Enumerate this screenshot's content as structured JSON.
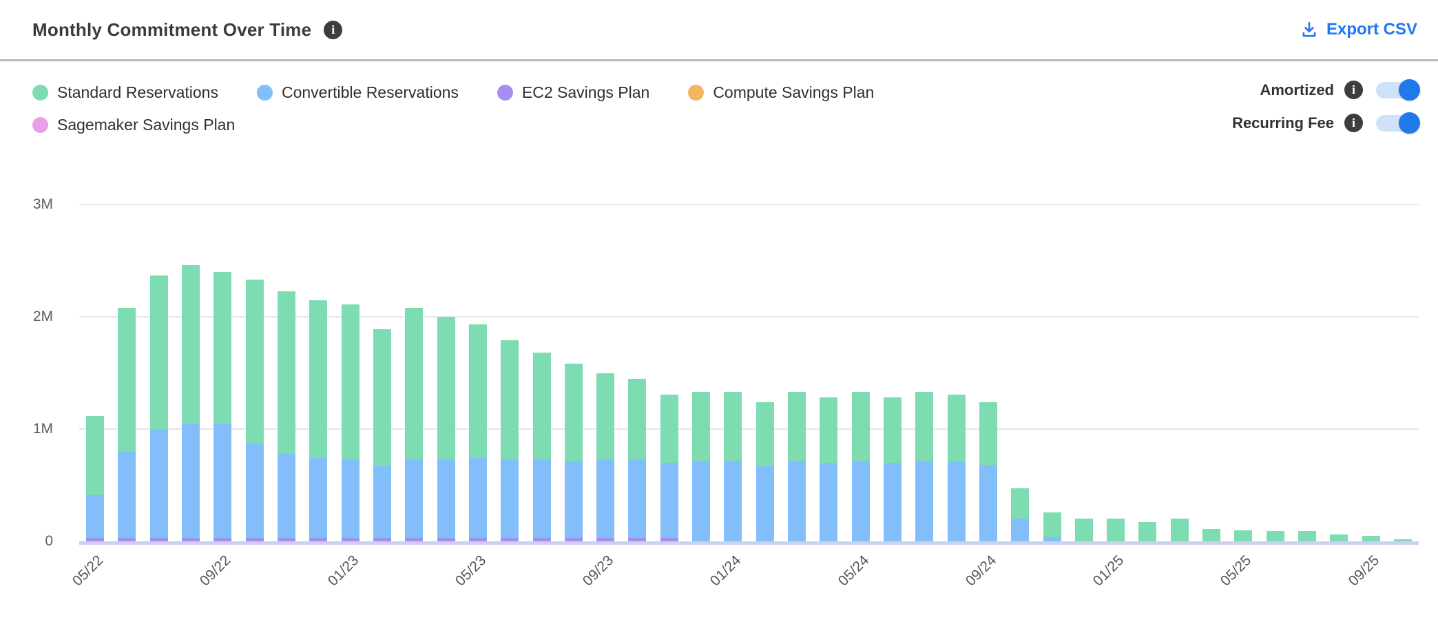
{
  "header": {
    "title": "Monthly Commitment Over Time",
    "export_label": "Export CSV"
  },
  "toggles": [
    {
      "label": "Amortized",
      "state": "on"
    },
    {
      "label": "Recurring Fee",
      "state": "on"
    }
  ],
  "colors": {
    "accent_blue": "#2176f3",
    "toggle_on": "#2079ea",
    "toggle_track": "#cfe2f8",
    "info_icon_bg": "#3d3d3d",
    "divider": "#b9b9b9",
    "gridline": "#e7e7e7",
    "axis_line": "#c9d3ee",
    "title_text": "#3b3b3b",
    "legend_text": "#2f2f2f",
    "axis_text": "#5d5d5d"
  },
  "chart_data": {
    "type": "bar",
    "stacked": true,
    "title": "Monthly Commitment Over Time",
    "unit": "M = millions",
    "ylim": [
      0,
      3
    ],
    "grid": "horizontal",
    "legend_position": "top-left",
    "y_ticks": {
      "values": [
        0,
        1,
        2,
        3
      ],
      "labels": [
        "0",
        "1M",
        "2M",
        "3M"
      ]
    },
    "x": [
      "05/22",
      "06/22",
      "07/22",
      "08/22",
      "09/22",
      "10/22",
      "11/22",
      "12/22",
      "01/23",
      "02/23",
      "03/23",
      "04/23",
      "05/23",
      "06/23",
      "07/23",
      "08/23",
      "09/23",
      "10/23",
      "11/23",
      "12/23",
      "01/24",
      "02/24",
      "03/24",
      "04/24",
      "05/24",
      "06/24",
      "07/24",
      "08/24",
      "09/24",
      "10/24",
      "11/24",
      "12/24",
      "01/25",
      "02/25",
      "03/25",
      "04/25",
      "05/25",
      "06/25",
      "07/25",
      "08/25",
      "09/25",
      "10/25"
    ],
    "x_tick_interval": 4,
    "x_tick_labels": [
      "05/22",
      "09/22",
      "01/23",
      "05/23",
      "09/23",
      "01/24",
      "05/24",
      "09/24",
      "01/25",
      "05/25",
      "09/25"
    ],
    "stack_bottom_to_top": [
      "Sagemaker Savings Plan",
      "Compute Savings Plan",
      "EC2 Savings Plan",
      "Convertible Reservations",
      "Standard Reservations"
    ],
    "series": [
      {
        "name": "Standard Reservations",
        "color": "#7edcb2",
        "values": [
          0.71,
          1.28,
          1.37,
          1.41,
          1.35,
          1.46,
          1.45,
          1.41,
          1.38,
          1.22,
          1.35,
          1.27,
          1.19,
          1.06,
          0.95,
          0.86,
          0.77,
          0.72,
          0.61,
          0.61,
          0.61,
          0.57,
          0.61,
          0.58,
          0.61,
          0.58,
          0.61,
          0.6,
          0.56,
          0.27,
          0.22,
          0.2,
          0.2,
          0.17,
          0.2,
          0.11,
          0.1,
          0.09,
          0.09,
          0.06,
          0.05,
          0.02
        ]
      },
      {
        "name": "Convertible Reservations",
        "color": "#82bef9",
        "values": [
          0.38,
          0.77,
          0.97,
          1.02,
          1.02,
          0.84,
          0.75,
          0.71,
          0.7,
          0.64,
          0.7,
          0.7,
          0.71,
          0.7,
          0.7,
          0.69,
          0.7,
          0.7,
          0.67,
          0.72,
          0.72,
          0.67,
          0.72,
          0.7,
          0.72,
          0.7,
          0.72,
          0.71,
          0.68,
          0.2,
          0.04,
          0,
          0,
          0,
          0,
          0,
          0,
          0,
          0,
          0,
          0,
          0
        ]
      },
      {
        "name": "EC2 Savings Plan",
        "color": "#a78df2",
        "values": [
          0.03,
          0.03,
          0.03,
          0.03,
          0.03,
          0.03,
          0.03,
          0.03,
          0.03,
          0.03,
          0.03,
          0.03,
          0.03,
          0.03,
          0.03,
          0.03,
          0.03,
          0.03,
          0.03,
          0,
          0,
          0,
          0,
          0,
          0,
          0,
          0,
          0,
          0,
          0,
          0,
          0,
          0,
          0,
          0,
          0,
          0,
          0,
          0,
          0,
          0,
          0
        ]
      },
      {
        "name": "Compute Savings Plan",
        "color": "#f3b660",
        "values": [
          0,
          0,
          0,
          0,
          0,
          0,
          0,
          0,
          0,
          0,
          0,
          0,
          0,
          0,
          0,
          0,
          0,
          0,
          0,
          0,
          0,
          0,
          0,
          0,
          0,
          0,
          0,
          0,
          0,
          0,
          0,
          0,
          0,
          0,
          0,
          0,
          0,
          0,
          0,
          0,
          0,
          0
        ]
      },
      {
        "name": "Sagemaker Savings Plan",
        "color": "#e9a0e6",
        "values": [
          0,
          0,
          0,
          0,
          0,
          0,
          0,
          0,
          0,
          0,
          0,
          0,
          0,
          0,
          0,
          0,
          0,
          0,
          0,
          0,
          0,
          0,
          0,
          0,
          0,
          0,
          0,
          0,
          0,
          0,
          0,
          0,
          0,
          0,
          0,
          0,
          0,
          0,
          0,
          0,
          0,
          0
        ]
      }
    ]
  }
}
